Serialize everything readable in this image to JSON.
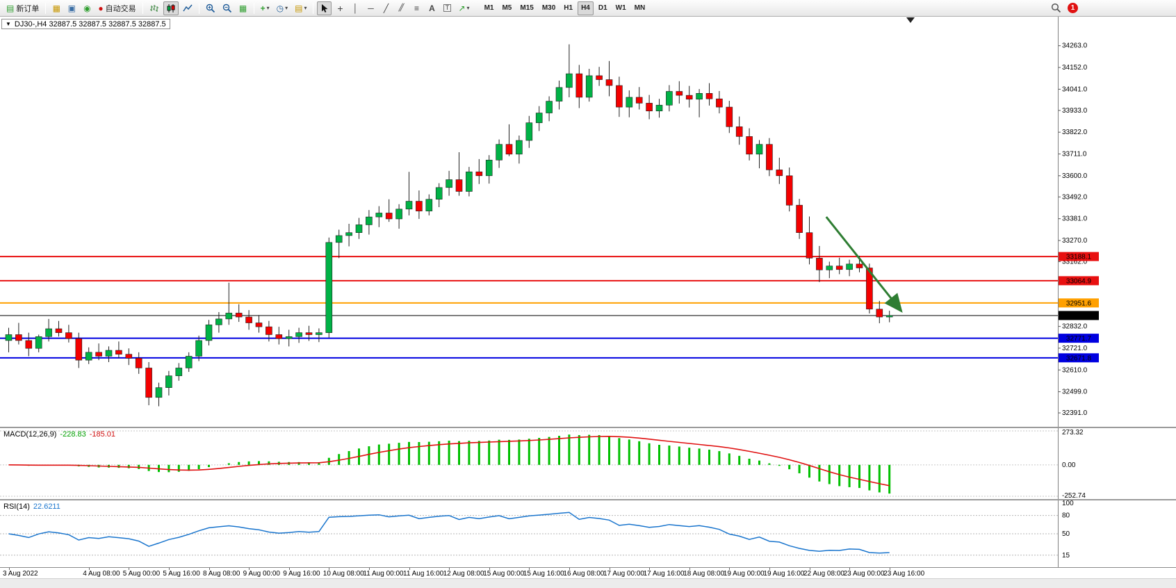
{
  "toolbar": {
    "new_order_label": "新订单",
    "autotrading_label": "自动交易",
    "timeframes": [
      "M1",
      "M5",
      "M15",
      "M30",
      "H1",
      "H4",
      "D1",
      "W1",
      "MN"
    ],
    "active_timeframe": "H4",
    "notification_badge": "1"
  },
  "icons": {
    "new_order": "▤",
    "charts": "▦",
    "profiles": "▣",
    "refresh": "◉",
    "autotrading_dot": "●",
    "tile_windows": "▦",
    "indicators_plus": "+",
    "periods_clock": "◷",
    "templates": "▤",
    "crosshair": "+",
    "vline": "│",
    "hline": "─",
    "trendline": "╱",
    "channel": "╱╱",
    "fibonacci": "≡",
    "text": "A",
    "text_label": "T",
    "arrows_tool": "↗",
    "caret": "▾",
    "one_click": "▼"
  },
  "chart_header": {
    "title": "DJ30-,H4 32887.5 32887.5 32887.5 32887.5"
  },
  "price_axis": {
    "ticks": [
      34263.0,
      34152.0,
      34041.0,
      33933.0,
      33822.0,
      33711.0,
      33600.0,
      33492.0,
      33381.0,
      33270.0,
      33162.0,
      32832.0,
      32721.0,
      32610.0,
      32499.0,
      32391.0
    ]
  },
  "indicators": {
    "macd": {
      "label": "MACD(12,26,9)",
      "values_text": [
        "-228.83",
        "-185.01"
      ],
      "fast": 12,
      "slow": 26,
      "signal": 9,
      "scale": {
        "max": 273.32,
        "min": -252.74
      },
      "axis_labels": [
        "273.32",
        "0.00",
        "-252.74"
      ],
      "histogram_color": "#00C000",
      "signal_color": "#E01010"
    },
    "rsi": {
      "label": "RSI(14)",
      "value_text": "22.6211",
      "period": 14,
      "levels": [
        80,
        50,
        15
      ],
      "axis_labels": [
        "100",
        "80",
        "50",
        "15"
      ],
      "line_color": "#1874CD",
      "range": [
        0,
        100
      ]
    }
  },
  "chart_data": {
    "type": "candlestick",
    "symbol": "DJ30-",
    "timeframe": "H4",
    "ylim": [
      32370,
      34340
    ],
    "up_color": "#00B246",
    "down_color": "#F40000",
    "levels": [
      {
        "name": "resistance-1",
        "price": 33188.1,
        "label": "33188.1",
        "color": "#E81010",
        "width": 2
      },
      {
        "name": "resistance-2",
        "price": 33064.9,
        "label": "33064.9",
        "color": "#E81010",
        "width": 2
      },
      {
        "name": "pivot",
        "price": 32951.6,
        "label": "32951.6",
        "color": "#FFA000",
        "width": 2
      },
      {
        "name": "current-price",
        "price": 32887.5,
        "label": "32887.5",
        "color": "#000000",
        "width": 1
      },
      {
        "name": "support-1",
        "price": 32771.7,
        "label": "32771.7",
        "color": "#0000E0",
        "width": 2
      },
      {
        "name": "support-2",
        "price": 32671.8,
        "label": "32671.8",
        "color": "#0000E0",
        "width": 2
      }
    ],
    "arrow": {
      "from_index": 82,
      "from_price": 33390,
      "to_index": 89.5,
      "to_price": 32910,
      "color": "#2E7D32"
    },
    "time_labels": [
      {
        "t": "3 Aug 2022",
        "i": 0
      },
      {
        "t": "4 Aug 08:00",
        "i": 8
      },
      {
        "t": "5 Aug 00:00",
        "i": 12
      },
      {
        "t": "5 Aug 16:00",
        "i": 16
      },
      {
        "t": "8 Aug 08:00",
        "i": 20
      },
      {
        "t": "9 Aug 00:00",
        "i": 24
      },
      {
        "t": "9 Aug 16:00",
        "i": 28
      },
      {
        "t": "10 Aug 08:00",
        "i": 32
      },
      {
        "t": "11 Aug 00:00",
        "i": 36
      },
      {
        "t": "11 Aug 16:00",
        "i": 40
      },
      {
        "t": "12 Aug 08:00",
        "i": 44
      },
      {
        "t": "15 Aug 00:00",
        "i": 48
      },
      {
        "t": "15 Aug 16:00",
        "i": 52
      },
      {
        "t": "16 Aug 08:00",
        "i": 56
      },
      {
        "t": "17 Aug 00:00",
        "i": 60
      },
      {
        "t": "17 Aug 16:00",
        "i": 64
      },
      {
        "t": "18 Aug 08:00",
        "i": 68
      },
      {
        "t": "19 Aug 00:00",
        "i": 72
      },
      {
        "t": "19 Aug 16:00",
        "i": 76
      },
      {
        "t": "22 Aug 08:00",
        "i": 80
      },
      {
        "t": "23 Aug 00:00",
        "i": 84
      },
      {
        "t": "23 Aug 16:00",
        "i": 88
      }
    ],
    "candles": [
      [
        32760,
        32825,
        32700,
        32790
      ],
      [
        32790,
        32850,
        32740,
        32760
      ],
      [
        32760,
        32800,
        32680,
        32720
      ],
      [
        32720,
        32790,
        32700,
        32780
      ],
      [
        32780,
        32870,
        32755,
        32820
      ],
      [
        32820,
        32860,
        32780,
        32800
      ],
      [
        32800,
        32840,
        32750,
        32770
      ],
      [
        32770,
        32800,
        32620,
        32660
      ],
      [
        32660,
        32725,
        32640,
        32700
      ],
      [
        32700,
        32745,
        32660,
        32680
      ],
      [
        32680,
        32730,
        32650,
        32710
      ],
      [
        32710,
        32755,
        32670,
        32690
      ],
      [
        32690,
        32720,
        32635,
        32670
      ],
      [
        32670,
        32700,
        32590,
        32620
      ],
      [
        32620,
        32650,
        32430,
        32470
      ],
      [
        32470,
        32545,
        32425,
        32520
      ],
      [
        32520,
        32605,
        32480,
        32580
      ],
      [
        32580,
        32645,
        32555,
        32620
      ],
      [
        32620,
        32700,
        32600,
        32680
      ],
      [
        32680,
        32785,
        32655,
        32760
      ],
      [
        32760,
        32865,
        32735,
        32840
      ],
      [
        32840,
        32905,
        32800,
        32870
      ],
      [
        32870,
        33055,
        32840,
        32900
      ],
      [
        32900,
        32945,
        32855,
        32880
      ],
      [
        32880,
        32915,
        32815,
        32850
      ],
      [
        32850,
        32890,
        32800,
        32830
      ],
      [
        32830,
        32860,
        32755,
        32790
      ],
      [
        32790,
        32830,
        32740,
        32770
      ],
      [
        32770,
        32815,
        32730,
        32780
      ],
      [
        32780,
        32825,
        32748,
        32800
      ],
      [
        32800,
        32835,
        32758,
        32790
      ],
      [
        32790,
        32822,
        32752,
        32800
      ],
      [
        32800,
        33285,
        32775,
        33260
      ],
      [
        33260,
        33325,
        33180,
        33295
      ],
      [
        33295,
        33355,
        33240,
        33310
      ],
      [
        33310,
        33385,
        33278,
        33350
      ],
      [
        33350,
        33425,
        33300,
        33390
      ],
      [
        33390,
        33445,
        33338,
        33410
      ],
      [
        33410,
        33480,
        33365,
        33380
      ],
      [
        33380,
        33455,
        33330,
        33430
      ],
      [
        33430,
        33620,
        33398,
        33470
      ],
      [
        33470,
        33525,
        33380,
        33420
      ],
      [
        33420,
        33505,
        33398,
        33480
      ],
      [
        33480,
        33562,
        33440,
        33540
      ],
      [
        33540,
        33625,
        33498,
        33580
      ],
      [
        33580,
        33720,
        33498,
        33520
      ],
      [
        33520,
        33645,
        33495,
        33620
      ],
      [
        33620,
        33685,
        33558,
        33600
      ],
      [
        33600,
        33705,
        33560,
        33680
      ],
      [
        33680,
        33785,
        33640,
        33760
      ],
      [
        33760,
        33862,
        33700,
        33710
      ],
      [
        33710,
        33805,
        33662,
        33780
      ],
      [
        33780,
        33905,
        33742,
        33870
      ],
      [
        33870,
        33955,
        33828,
        33920
      ],
      [
        33920,
        34005,
        33878,
        33980
      ],
      [
        33980,
        34085,
        33938,
        34050
      ],
      [
        34050,
        34270,
        34000,
        34120
      ],
      [
        34120,
        34165,
        33945,
        34000
      ],
      [
        34000,
        34145,
        33978,
        34110
      ],
      [
        34110,
        34155,
        34058,
        34090
      ],
      [
        34090,
        34185,
        34005,
        34060
      ],
      [
        34060,
        34105,
        33900,
        33950
      ],
      [
        33950,
        34035,
        33898,
        34000
      ],
      [
        34000,
        34052,
        33938,
        33970
      ],
      [
        33970,
        34012,
        33888,
        33930
      ],
      [
        33930,
        33992,
        33896,
        33960
      ],
      [
        33960,
        34062,
        33928,
        34030
      ],
      [
        34030,
        34082,
        33968,
        34010
      ],
      [
        34010,
        34058,
        33948,
        33990
      ],
      [
        33990,
        34042,
        33898,
        34020
      ],
      [
        34020,
        34072,
        33958,
        33992
      ],
      [
        33992,
        34032,
        33918,
        33950
      ],
      [
        33950,
        33982,
        33818,
        33850
      ],
      [
        33850,
        33902,
        33758,
        33800
      ],
      [
        33800,
        33842,
        33678,
        33710
      ],
      [
        33710,
        33782,
        33638,
        33760
      ],
      [
        33760,
        33792,
        33598,
        33630
      ],
      [
        33630,
        33692,
        33558,
        33600
      ],
      [
        33600,
        33642,
        33418,
        33450
      ],
      [
        33450,
        33482,
        33278,
        33310
      ],
      [
        33310,
        33392,
        33148,
        33180
      ],
      [
        33180,
        33242,
        33058,
        33120
      ],
      [
        33120,
        33162,
        33078,
        33140
      ],
      [
        33140,
        33182,
        33098,
        33122
      ],
      [
        33122,
        33172,
        33088,
        33150
      ],
      [
        33150,
        33192,
        33108,
        33130
      ],
      [
        33130,
        33152,
        32898,
        32920
      ],
      [
        32920,
        32962,
        32848,
        32880
      ],
      [
        32880,
        32912,
        32853,
        32887.5
      ]
    ]
  }
}
